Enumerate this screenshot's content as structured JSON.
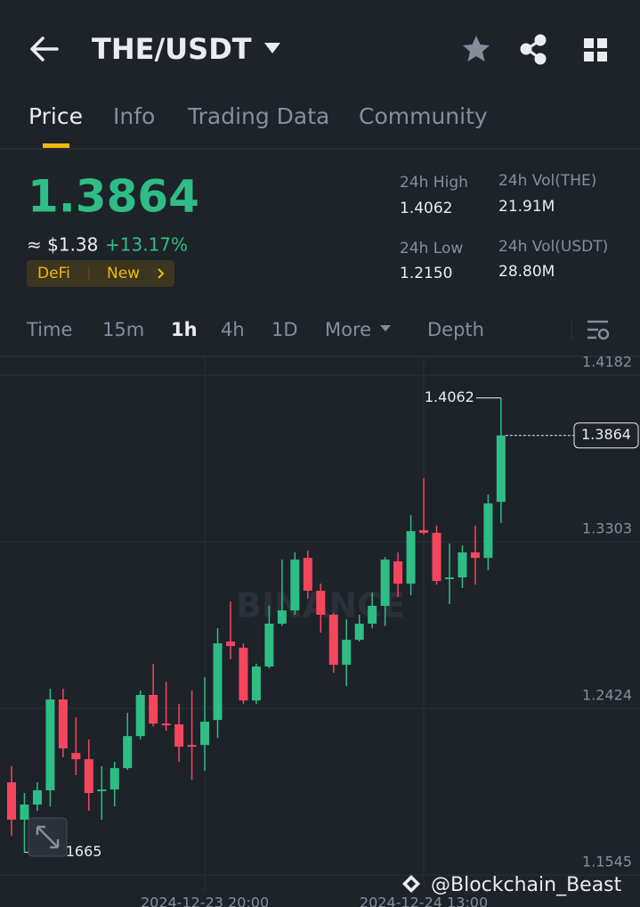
{
  "header": {
    "title": "THE/USDT"
  },
  "tabs": [
    "Price",
    "Info",
    "Trading Data",
    "Community"
  ],
  "ticker": {
    "price": "1.3864",
    "fiat": "≈ $1.38",
    "change": "+13.17%",
    "tags": [
      "DeFi",
      "New"
    ]
  },
  "stats": [
    {
      "label": "24h High",
      "value": "1.4062"
    },
    {
      "label": "24h Vol(THE)",
      "value": "21.91M"
    },
    {
      "label": "24h Low",
      "value": "1.2150"
    },
    {
      "label": "24h Vol(USDT)",
      "value": "28.80M"
    }
  ],
  "intervals": [
    "Time",
    "15m",
    "1h",
    "4h",
    "1D",
    "More",
    "Depth"
  ],
  "watermarks": [
    "BINANCE",
    "@Blockchain_Beast"
  ],
  "chart_data": {
    "type": "candlestick",
    "categories": [
      null,
      null,
      null,
      null,
      null,
      null,
      null,
      null,
      null,
      null,
      null,
      null,
      null,
      null,
      null,
      "2024-12-23 20:00",
      null,
      null,
      null,
      null,
      null,
      null,
      null,
      null,
      null,
      null,
      null,
      null,
      null,
      null,
      null,
      null,
      "2024-12-24 13:00",
      null,
      null,
      null,
      null,
      null,
      null
    ],
    "open": [
      1.2034,
      1.1837,
      1.1917,
      1.1992,
      1.2471,
      1.2189,
      1.2156,
      1.1987,
      1.1996,
      1.2109,
      1.2278,
      1.2495,
      1.2344,
      1.234,
      1.2231,
      1.2231,
      1.2363,
      1.2777,
      1.2744,
      1.2466,
      1.2645,
      1.2871,
      1.2941,
      1.3218,
      1.3045,
      1.2918,
      1.2654,
      1.2786,
      1.2871,
      1.2965,
      1.32,
      1.3082,
      1.3364,
      1.335,
      1.3106,
      1.3115,
      1.3247,
      1.3218,
      1.3514
    ],
    "high": [
      1.2119,
      1.1978,
      1.2034,
      1.2528,
      1.2528,
      1.2377,
      1.226,
      1.2119,
      1.2142,
      1.2401,
      1.2518,
      1.2659,
      1.2565,
      1.2448,
      1.2518,
      1.2589,
      1.2847,
      1.2988,
      1.2767,
      1.266,
      1.2965,
      1.3209,
      1.3247,
      1.3256,
      1.3082,
      1.2927,
      1.2894,
      1.2918,
      1.3035,
      1.3223,
      1.3247,
      1.3444,
      1.3637,
      1.3388,
      1.3294,
      1.3284,
      1.3388,
      1.3552,
      1.4062
    ],
    "low": [
      1.1752,
      1.1665,
      1.1884,
      1.1907,
      1.2166,
      1.2072,
      1.1884,
      1.1837,
      1.1907,
      1.21,
      1.226,
      1.233,
      1.2307,
      1.2142,
      1.2048,
      1.2095,
      1.2269,
      1.2683,
      1.2448,
      1.2448,
      1.2636,
      1.286,
      1.2918,
      1.3002,
      1.2824,
      1.2612,
      1.2542,
      1.2777,
      1.2847,
      1.286,
      1.3012,
      1.3021,
      1.3341,
      1.3077,
      1.2974,
      1.3059,
      1.3077,
      1.3153,
      1.3402
    ],
    "close": [
      1.1837,
      1.1917,
      1.1992,
      1.2471,
      1.2213,
      1.2156,
      1.1978,
      1.1996,
      1.2109,
      1.2278,
      1.2495,
      1.2344,
      1.2335,
      1.2222,
      1.2222,
      1.2354,
      1.2767,
      1.2753,
      1.2466,
      1.2645,
      1.2871,
      1.2941,
      1.3209,
      1.3045,
      1.2918,
      1.2654,
      1.2786,
      1.2871,
      1.2965,
      1.3209,
      1.3082,
      1.3359,
      1.335,
      1.3096,
      1.3115,
      1.3247,
      1.3218,
      1.3505,
      1.3864
    ],
    "up_color": "#2ebd85",
    "down_color": "#f6465d",
    "ylim": [
      1.1461,
      1.4281
    ],
    "yticks": [
      1.1545,
      1.2424,
      1.3303,
      1.4182
    ],
    "grid": true
  }
}
